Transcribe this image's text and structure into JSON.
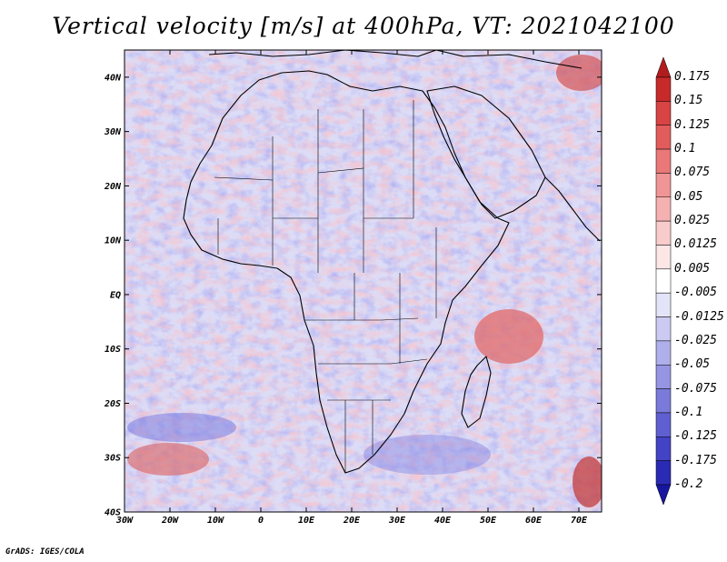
{
  "title": "Vertical velocity [m/s] at 400hPa, VT: 2021042100",
  "credit": "GrADS: IGES/COLA",
  "map": {
    "lat_labels": [
      "40N",
      "30N",
      "20N",
      "10N",
      "EQ",
      "10S",
      "20S",
      "30S",
      "40S"
    ],
    "lon_labels": [
      "30W",
      "20W",
      "10W",
      "0",
      "10E",
      "20E",
      "30E",
      "40E",
      "50E",
      "60E",
      "70E"
    ],
    "lon_range": [
      -30,
      75
    ],
    "lat_range": [
      -40,
      45
    ]
  },
  "colorbar": {
    "levels": [
      "0.175",
      "0.15",
      "0.125",
      "0.1",
      "0.075",
      "0.05",
      "0.025",
      "0.0125",
      "0.005",
      "-0.005",
      "-0.0125",
      "-0.025",
      "-0.05",
      "-0.075",
      "-0.1",
      "-0.125",
      "-0.175",
      "-0.2"
    ],
    "colors": [
      "#b31c1c",
      "#c72a2a",
      "#d84343",
      "#e25c5c",
      "#ea7878",
      "#f09595",
      "#f5b1b1",
      "#f9cccc",
      "#fce6e6",
      "#ffffff",
      "#e4e4f8",
      "#cacaf2",
      "#afafeb",
      "#9595e3",
      "#7a7adb",
      "#5f5fd1",
      "#4343c5",
      "#2a2ab4",
      "#1616a0"
    ]
  },
  "legend_colors": {
    "rising": "#c72a2a",
    "sinking": "#4343c5",
    "neutral": "#ffffff"
  }
}
